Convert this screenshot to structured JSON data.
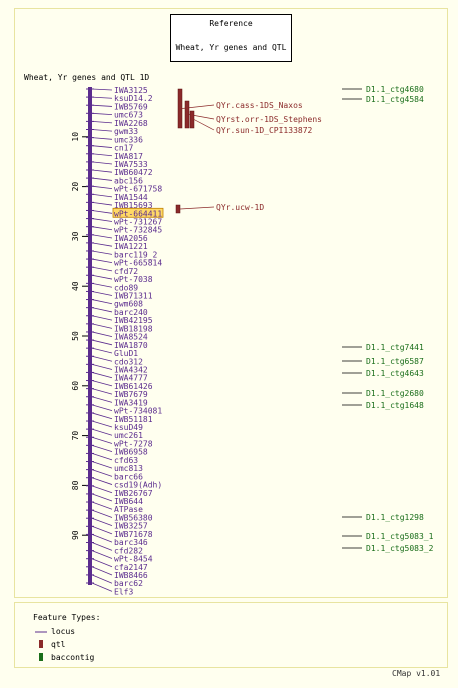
{
  "reference_title": "Reference",
  "map_set_title": "Wheat, Yr genes and QTL",
  "map_title": "Wheat, Yr genes and QTL 1D",
  "scale": {
    "min": 0,
    "max": 100,
    "ticks": [
      10,
      20,
      30,
      40,
      50,
      60,
      70,
      80,
      90
    ]
  },
  "colors": {
    "locus": "#5B2C8E",
    "qtl": "#8B2A2A",
    "contig": "#1A6E1A",
    "highlight": "#FFD966",
    "frame": "#E8E4A0"
  },
  "loci": [
    "IWA3125",
    "ksuD14.2",
    "IWB5769",
    "umc673",
    "IWA2268",
    "gwm33",
    "umc336",
    "cn17",
    "IWA817",
    "IWA7533",
    "IWB60472",
    "abc156",
    "wPt-671758",
    "IWA1544",
    "IWB15693",
    "wPt-664411",
    "wPt-731267",
    "wPt-732845",
    "IWA2056",
    "IWA1221",
    "barc119_2",
    "wPt-665814",
    "cfd72",
    "wPt-7038",
    "cdo89",
    "IWB71311",
    "gwm608",
    "barc240",
    "IWB42195",
    "IWB18198",
    "IWA8524",
    "IWA1870",
    "GluD1",
    "cdo312",
    "IWA4342",
    "IWA4777",
    "IWB61426",
    "IWB7679",
    "IWA3419",
    "wPt-734081",
    "IWB51181",
    "ksuD49",
    "umc261",
    "wPt-7278",
    "IWB6958",
    "cfd63",
    "umc813",
    "barc66",
    "csd19(Adh)",
    "IWB26767",
    "IWB644",
    "ATPase",
    "IWB56380",
    "IWB3257",
    "IWB71678",
    "barc346",
    "cfd282",
    "wPt-8454",
    "cfa2147",
    "IWB8466",
    "barc62",
    "Elf3"
  ],
  "highlighted_locus": "wPt-664411",
  "qtls": [
    {
      "name": "QYr.cass-1DS_Naxos",
      "start": 0,
      "end": 9
    },
    {
      "name": "QYrst.orr-1DS_Stephens",
      "start": 1,
      "end": 9
    },
    {
      "name": "QYr.sun-1D_CPI133872",
      "start": 3,
      "end": 9
    },
    {
      "name": "QYr.ucw-1D",
      "start": 26,
      "end": 27
    }
  ],
  "contigs": [
    "D1.1_ctg4680",
    "D1.1_ctg4584",
    "D1.1_ctg7441",
    "D1.1_ctg6587",
    "D1.1_ctg4643",
    "D1.1_ctg2680",
    "D1.1_ctg1648",
    "D1.1_ctg1298",
    "D1.1_ctg5083_1",
    "D1.1_ctg5083_2"
  ],
  "legend": {
    "header": "Feature Types:",
    "items": [
      {
        "label": "locus",
        "kind": "locus"
      },
      {
        "label": "qtl",
        "kind": "qtl"
      },
      {
        "label": "baccontig",
        "kind": "contig"
      }
    ]
  },
  "footer": "CMap v1.01"
}
